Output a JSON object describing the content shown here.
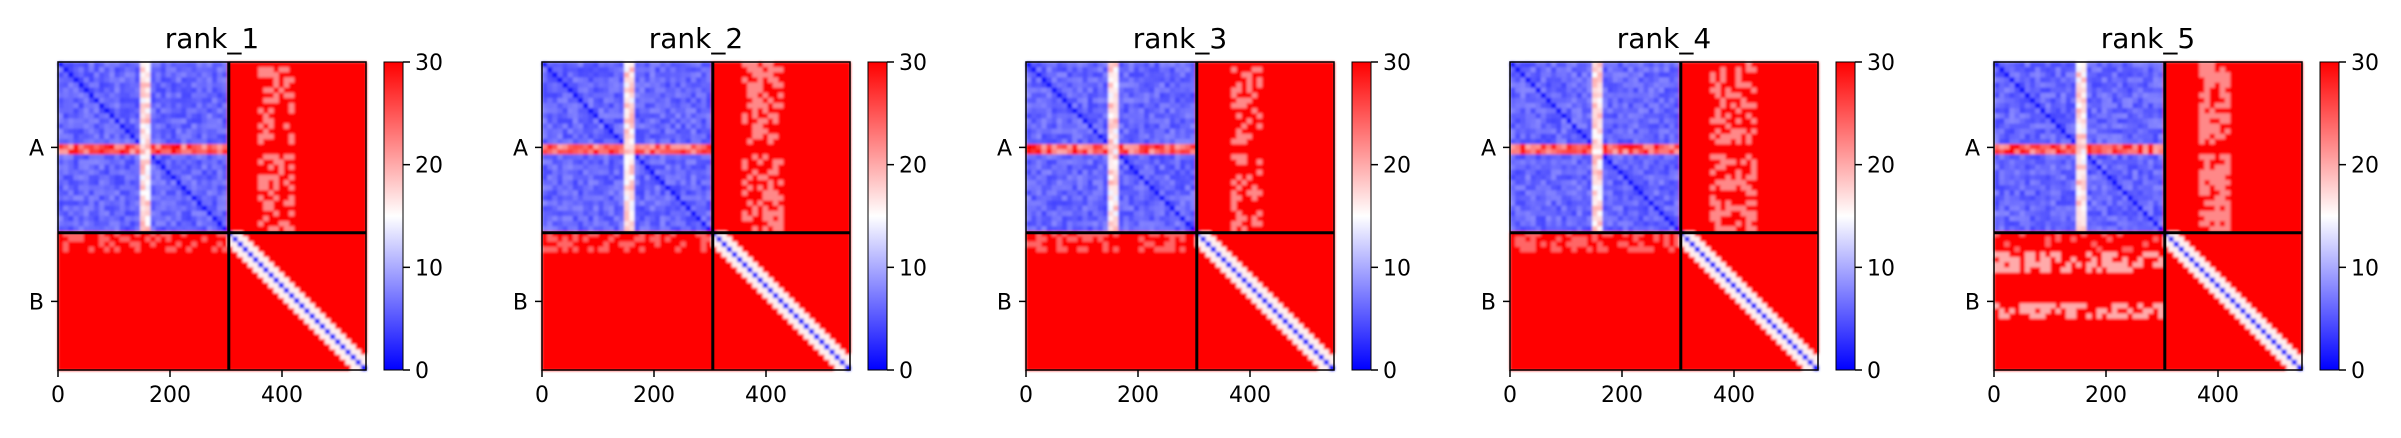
{
  "colors": {
    "low": "#0000ff",
    "mid": "#ffffff",
    "high": "#ff0000",
    "divider": "#000000"
  },
  "chart_data": [
    {
      "type": "heatmap",
      "title": "rank_1",
      "xlim": [
        0,
        550
      ],
      "xticks": [
        "0",
        "200",
        "400"
      ],
      "yticks": [
        "A",
        "B"
      ],
      "chain_boundary": 305,
      "colorbar": {
        "min": 0,
        "max": 30,
        "ticks": [
          "0",
          "10",
          "20",
          "30"
        ]
      },
      "chains": [
        "A",
        "B"
      ],
      "ab_noise": 0.35,
      "ab_band_sets": [
        [
          [
            150,
            165,
            0.5
          ],
          [
            355,
            420,
            0.4
          ]
        ]
      ],
      "ba_band_sets": []
    },
    {
      "type": "heatmap",
      "title": "rank_2",
      "xlim": [
        0,
        550
      ],
      "xticks": [
        "0",
        "200",
        "400"
      ],
      "yticks": [
        "A",
        "B"
      ],
      "chain_boundary": 305,
      "colorbar": {
        "min": 0,
        "max": 30,
        "ticks": [
          "0",
          "10",
          "20",
          "30"
        ]
      },
      "chains": [
        "A",
        "B"
      ],
      "ab_noise": 0.35,
      "ab_band_sets": [
        [
          [
            150,
            165,
            0.5
          ],
          [
            355,
            430,
            0.4
          ]
        ]
      ],
      "ba_band_sets": []
    },
    {
      "type": "heatmap",
      "title": "rank_3",
      "xlim": [
        0,
        550
      ],
      "xticks": [
        "0",
        "200",
        "400"
      ],
      "yticks": [
        "A",
        "B"
      ],
      "chain_boundary": 305,
      "colorbar": {
        "min": 0,
        "max": 30,
        "ticks": [
          "0",
          "10",
          "20",
          "30"
        ]
      },
      "chains": [
        "A",
        "B"
      ],
      "ab_noise": 0.35,
      "ab_band_sets": [
        [
          [
            150,
            165,
            0.5
          ],
          [
            370,
            420,
            0.4
          ]
        ]
      ],
      "ba_band_sets": []
    },
    {
      "type": "heatmap",
      "title": "rank_4",
      "xlim": [
        0,
        550
      ],
      "xticks": [
        "0",
        "200",
        "400"
      ],
      "yticks": [
        "A",
        "B"
      ],
      "chain_boundary": 305,
      "colorbar": {
        "min": 0,
        "max": 30,
        "ticks": [
          "0",
          "10",
          "20",
          "30"
        ]
      },
      "chains": [
        "A",
        "B"
      ],
      "ab_noise": 0.35,
      "ab_band_sets": [
        [
          [
            150,
            165,
            0.5
          ],
          [
            355,
            440,
            0.4
          ]
        ]
      ],
      "ba_band_sets": []
    },
    {
      "type": "heatmap",
      "title": "rank_5",
      "xlim": [
        0,
        550
      ],
      "xticks": [
        "0",
        "200",
        "400"
      ],
      "yticks": [
        "A",
        "B"
      ],
      "chain_boundary": 305,
      "colorbar": {
        "min": 0,
        "max": 30,
        "ticks": [
          "0",
          "10",
          "20",
          "30"
        ]
      },
      "chains": [
        "A",
        "B"
      ],
      "ab_noise": 0.2,
      "ab_band_sets": [
        [
          [
            150,
            165,
            0.5
          ],
          [
            365,
            420,
            0.7
          ]
        ]
      ],
      "ba_band_sets": [
        [
          [
            335,
            380,
            0.6
          ],
          [
            430,
            460,
            0.6
          ]
        ]
      ]
    }
  ]
}
